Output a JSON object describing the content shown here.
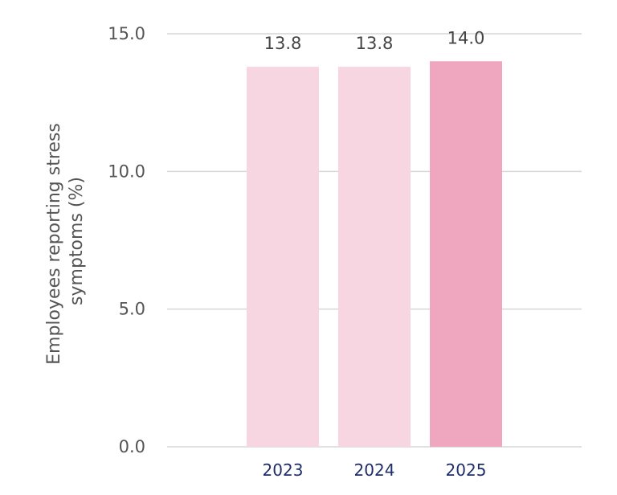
{
  "chart_data": {
    "type": "bar",
    "categories": [
      "2023",
      "2024",
      "2025"
    ],
    "values": [
      13.8,
      13.8,
      14.0
    ],
    "value_labels": [
      "13.8",
      "13.8",
      "14.0"
    ],
    "ylabel_lines": [
      "Employees reporting stress",
      "symptoms (%)"
    ],
    "xlabel": "",
    "ylim": [
      0,
      15
    ],
    "yticks": [
      0,
      5,
      10,
      15
    ],
    "ytick_labels": [
      "0.0",
      "5.0",
      "10.0",
      "15.0"
    ],
    "grid": "horizontal",
    "bar_colors": [
      "#f7d6e1",
      "#f7d6e1",
      "#efa7bf"
    ]
  }
}
